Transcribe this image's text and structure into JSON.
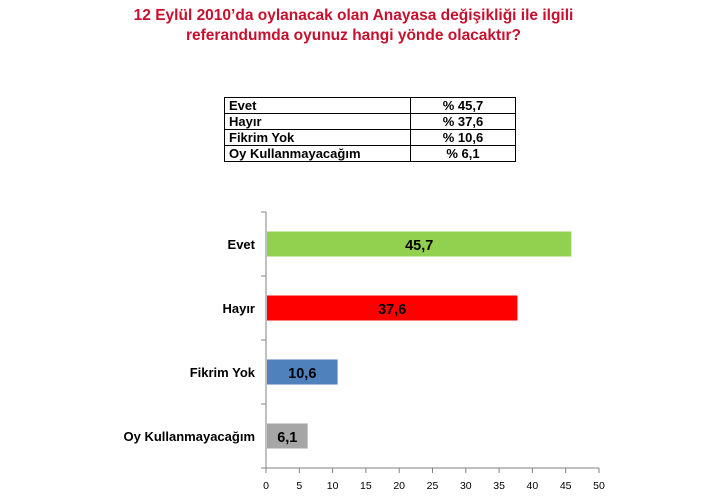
{
  "title": {
    "line1": "12 Eylül 2010’da oylanacak olan Anayasa değişikliği ile ilgili",
    "line2": "referandumda oyunuz hangi yönde olacaktır?"
  },
  "summary_table": [
    {
      "label": "Evet",
      "value": "% 45,7"
    },
    {
      "label": "Hayır",
      "value": "% 37,6"
    },
    {
      "label": "Fikrim Yok",
      "value": "% 10,6"
    },
    {
      "label": "Oy Kullanmayacağım",
      "value": "% 6,1"
    }
  ],
  "chart_data": {
    "type": "bar",
    "orientation": "horizontal",
    "categories": [
      "Evet",
      "Hayır",
      "Fikrim Yok",
      "Oy Kullanmayacağım"
    ],
    "values": [
      45.7,
      37.6,
      10.6,
      6.1
    ],
    "value_labels": [
      "45,7",
      "37,6",
      "10,6",
      "6,1"
    ],
    "colors": [
      "#92d050",
      "#ff0000",
      "#4f81bd",
      "#a6a6a6"
    ],
    "xlim": [
      0,
      50
    ],
    "xticks": [
      0,
      5,
      10,
      15,
      20,
      25,
      30,
      35,
      40,
      45,
      50
    ],
    "grid": false,
    "legend": "none"
  }
}
